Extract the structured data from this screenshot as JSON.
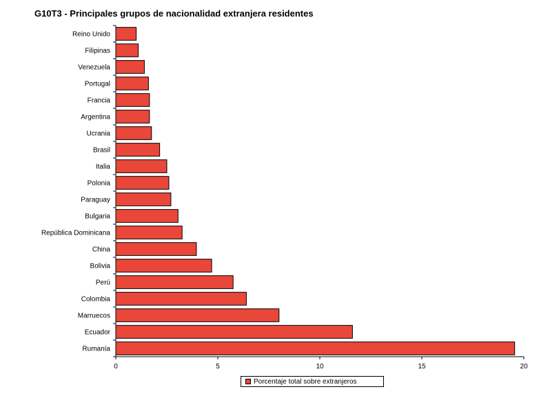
{
  "chart_data": {
    "type": "bar",
    "orientation": "horizontal",
    "title": "G10T3 - Principales grupos de nacionalidad extranjera residentes",
    "categories": [
      "Reino Unido",
      "Filipinas",
      "Venezuela",
      "Portugal",
      "Francia",
      "Argentina",
      "Ucrania",
      "Brasil",
      "Italia",
      "Polonia",
      "Paraguay",
      "Bulgaria",
      "República Dominicana",
      "China",
      "Bolivia",
      "Perú",
      "Colombia",
      "Marruecos",
      "Ecuador",
      "Rumanía"
    ],
    "series": [
      {
        "name": "Porcentaje total sobre extranjeros",
        "values": [
          1.0,
          1.1,
          1.4,
          1.6,
          1.65,
          1.65,
          1.75,
          2.15,
          2.5,
          2.6,
          2.7,
          3.05,
          3.25,
          3.95,
          4.7,
          5.75,
          6.4,
          8.0,
          11.6,
          19.55
        ]
      }
    ],
    "xlim": [
      0,
      20
    ],
    "xticks": [
      0,
      5,
      10,
      15,
      20
    ],
    "grid": false,
    "legend_position": "bottom",
    "bar_color": "#e8473a"
  }
}
